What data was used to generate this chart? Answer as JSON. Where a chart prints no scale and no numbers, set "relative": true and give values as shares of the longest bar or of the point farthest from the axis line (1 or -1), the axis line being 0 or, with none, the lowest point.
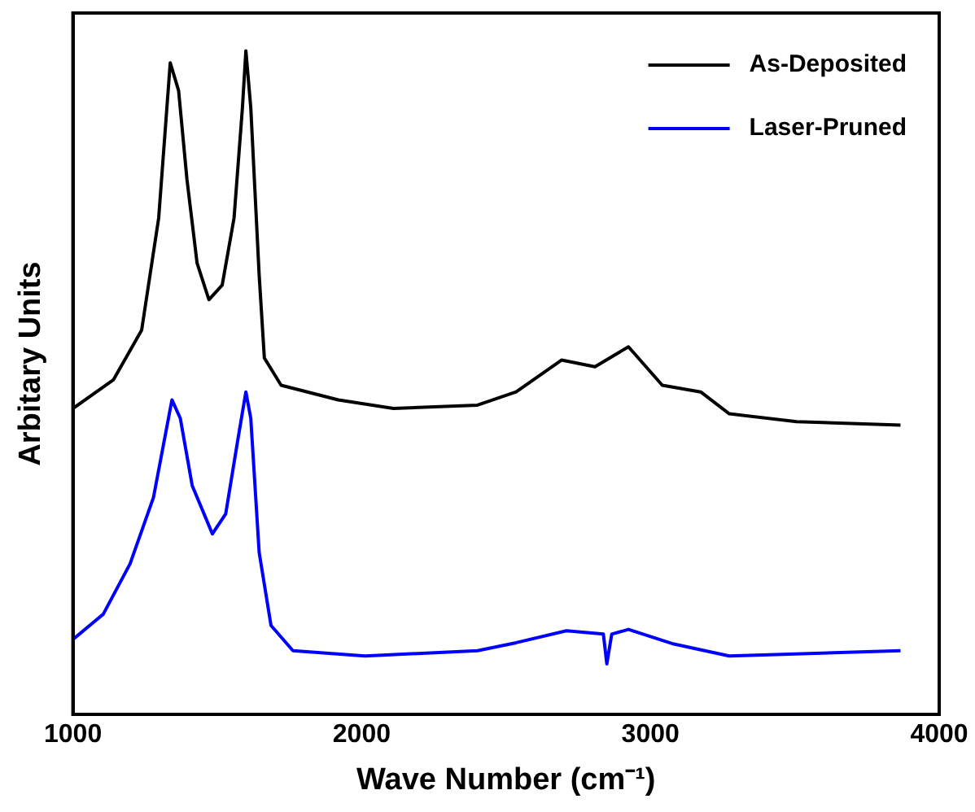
{
  "chart_data": {
    "type": "line",
    "xlabel": "Wave Number (cm⁻¹)",
    "ylabel": "Arbitary Units",
    "relative": true,
    "xlim": [
      1000,
      4000
    ],
    "xticks": [
      1000,
      2000,
      3000,
      4000
    ],
    "grid": false,
    "legend": "top right",
    "marker": "none",
    "line_style": "solid",
    "series": [
      {
        "name": "As-Deposited",
        "color": "#000000",
        "x": [
          1000,
          1140,
          1238,
          1297,
          1337,
          1366,
          1395,
          1430,
          1471,
          1517,
          1558,
          1587,
          1599,
          1616,
          1645,
          1663,
          1721,
          1919,
          2110,
          2401,
          2535,
          2692,
          2808,
          2924,
          3041,
          3174,
          3273,
          3506,
          3866
        ],
        "values": [
          0.461,
          0.504,
          0.579,
          0.748,
          0.982,
          0.94,
          0.806,
          0.68,
          0.625,
          0.647,
          0.748,
          0.914,
          1.0,
          0.914,
          0.662,
          0.537,
          0.496,
          0.474,
          0.461,
          0.466,
          0.486,
          0.534,
          0.524,
          0.554,
          0.496,
          0.486,
          0.453,
          0.441,
          0.436
        ]
      },
      {
        "name": "Laser-Pruned",
        "color": "#0000ff",
        "x": [
          1000,
          1105,
          1198,
          1279,
          1343,
          1372,
          1413,
          1483,
          1529,
          1570,
          1599,
          1616,
          1645,
          1686,
          1762,
          2012,
          2401,
          2535,
          2709,
          2837,
          2849,
          2866,
          2924,
          3081,
          3273,
          3866
        ],
        "values": [
          0.113,
          0.151,
          0.227,
          0.327,
          0.474,
          0.446,
          0.345,
          0.272,
          0.302,
          0.411,
          0.486,
          0.446,
          0.244,
          0.134,
          0.096,
          0.088,
          0.096,
          0.108,
          0.126,
          0.121,
          0.076,
          0.121,
          0.128,
          0.106,
          0.088,
          0.096
        ]
      }
    ]
  }
}
